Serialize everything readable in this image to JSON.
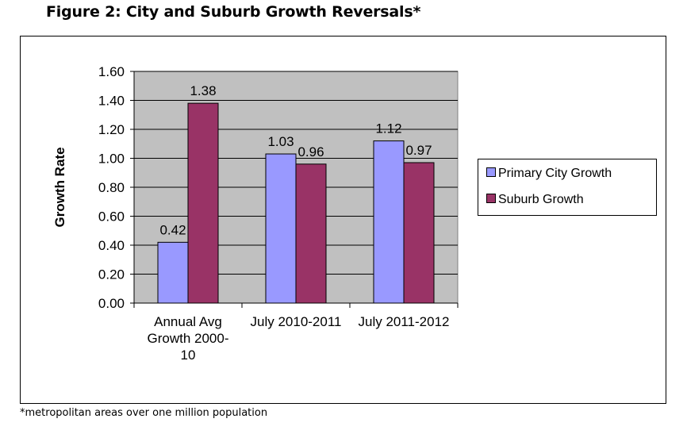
{
  "figure_title": "Figure 2: City and Suburb Growth Reversals*",
  "footnote": "*metropolitan areas over one million population",
  "colors": {
    "primary_city": "#9999ff",
    "suburb": "#993366",
    "plot_bg": "#c0c0c0"
  },
  "chart_data": {
    "type": "bar",
    "title": "",
    "xlabel": "",
    "ylabel": "Growth Rate",
    "ylim": [
      0,
      1.6
    ],
    "yticks": [
      "0.00",
      "0.20",
      "0.40",
      "0.60",
      "0.80",
      "1.00",
      "1.20",
      "1.40",
      "1.60"
    ],
    "categories": [
      [
        "Annual Avg",
        "Growth 2000-",
        "10"
      ],
      [
        "July 2010-2011"
      ],
      [
        "July 2011-2012"
      ]
    ],
    "series": [
      {
        "name": "Primary City Growth",
        "values": [
          0.42,
          1.03,
          1.12
        ],
        "labels": [
          "0.42",
          "1.03",
          "1.12"
        ],
        "color": "#9999ff"
      },
      {
        "name": "Suburb Growth",
        "values": [
          1.38,
          0.96,
          0.97
        ],
        "labels": [
          "1.38",
          "0.96",
          "0.97"
        ],
        "color": "#993366"
      }
    ],
    "grid": true,
    "legend_position": "right"
  }
}
